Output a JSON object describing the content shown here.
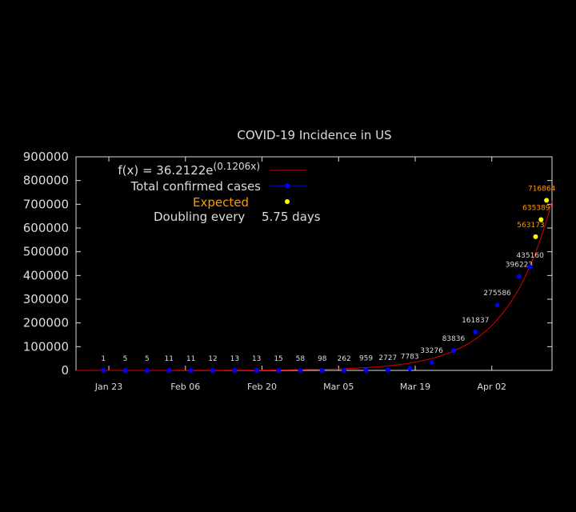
{
  "colors": {
    "background": "#000000",
    "text": "#dcdcdc",
    "axis": "#dcdcdc",
    "fit": "#dd0000",
    "confirmed": "#0000ff",
    "expected": "#ffff00",
    "expected_label": "#ff9900"
  },
  "chart_data": {
    "type": "scatter",
    "title": "COVID-19 Incidence in US",
    "xlabel": "",
    "ylabel": "",
    "ylim": [
      0,
      900000
    ],
    "yticks": [
      "0",
      "100000",
      "200000",
      "300000",
      "400000",
      "500000",
      "600000",
      "700000",
      "800000",
      "900000"
    ],
    "xlim": [
      "2020-01-17",
      "2020-04-13"
    ],
    "xticks": [
      {
        "date": "2020-01-23",
        "label": "Jan 23"
      },
      {
        "date": "2020-02-06",
        "label": "Feb 06"
      },
      {
        "date": "2020-02-20",
        "label": "Feb 20"
      },
      {
        "date": "2020-03-05",
        "label": "Mar 05"
      },
      {
        "date": "2020-03-19",
        "label": "Mar 19"
      },
      {
        "date": "2020-04-02",
        "label": "Apr 02"
      }
    ],
    "legend": {
      "fit": "f(x) = 36.2122e",
      "fit_exponent": "(0.1206x)",
      "confirmed": "Total confirmed cases",
      "expected": "Expected",
      "doubling_label": "Doubling every",
      "doubling_value": "5.75 days"
    },
    "fit": {
      "a": 36.2122,
      "b": 0.1206
    },
    "series": [
      {
        "name": "Total confirmed cases",
        "points": [
          {
            "date": "2020-01-22",
            "value": 1,
            "label": "1"
          },
          {
            "date": "2020-01-26",
            "value": 5,
            "label": "5"
          },
          {
            "date": "2020-01-30",
            "value": 5,
            "label": "5"
          },
          {
            "date": "2020-02-03",
            "value": 11,
            "label": "11"
          },
          {
            "date": "2020-02-07",
            "value": 11,
            "label": "11"
          },
          {
            "date": "2020-02-11",
            "value": 12,
            "label": "12"
          },
          {
            "date": "2020-02-15",
            "value": 13,
            "label": "13"
          },
          {
            "date": "2020-02-19",
            "value": 13,
            "label": "13"
          },
          {
            "date": "2020-02-23",
            "value": 15,
            "label": "15"
          },
          {
            "date": "2020-02-27",
            "value": 58,
            "label": "58"
          },
          {
            "date": "2020-03-02",
            "value": 98,
            "label": "98"
          },
          {
            "date": "2020-03-06",
            "value": 262,
            "label": "262"
          },
          {
            "date": "2020-03-10",
            "value": 959,
            "label": "959"
          },
          {
            "date": "2020-03-14",
            "value": 2727,
            "label": "2727"
          },
          {
            "date": "2020-03-18",
            "value": 7783,
            "label": "7783"
          },
          {
            "date": "2020-03-22",
            "value": 33276,
            "label": "33276"
          },
          {
            "date": "2020-03-26",
            "value": 83836,
            "label": "83836"
          },
          {
            "date": "2020-03-30",
            "value": 161837,
            "label": "161837"
          },
          {
            "date": "2020-04-03",
            "value": 275586,
            "label": "275586"
          },
          {
            "date": "2020-04-07",
            "value": 396223,
            "label": "396223"
          },
          {
            "date": "2020-04-09",
            "value": 435160,
            "label": "435160"
          }
        ]
      },
      {
        "name": "Expected",
        "points": [
          {
            "date": "2020-04-10",
            "value": 563173,
            "label": "563173"
          },
          {
            "date": "2020-04-11",
            "value": 635389,
            "label": "635389"
          },
          {
            "date": "2020-04-12",
            "value": 716864,
            "label": "716864"
          }
        ]
      }
    ]
  }
}
